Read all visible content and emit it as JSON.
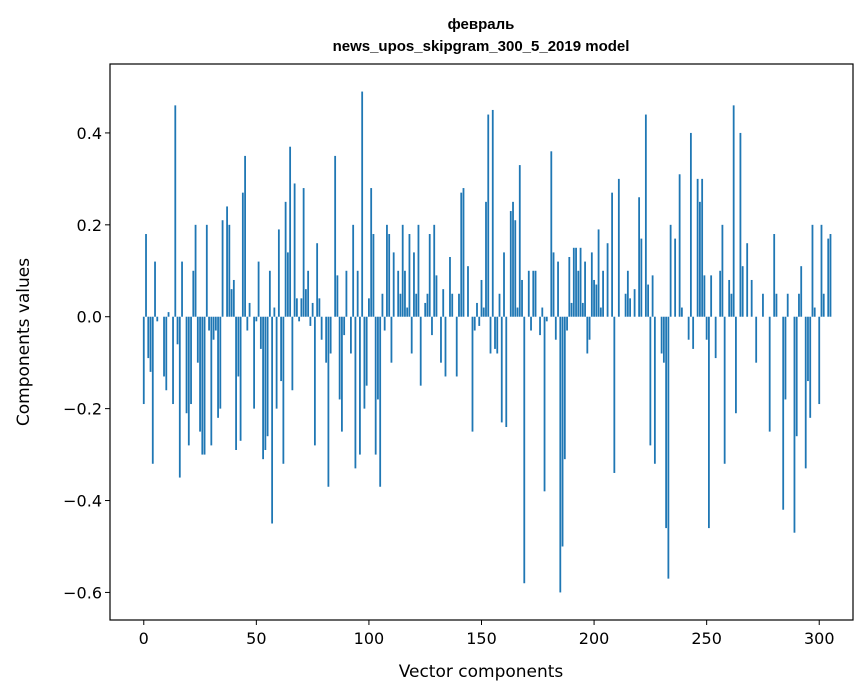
{
  "chart_data": {
    "type": "bar",
    "title": "февраль",
    "subtitle": "news_upos_skipgram_300_5_2019 model",
    "xlabel": "Vector components",
    "ylabel": "Components values",
    "xlim": [
      -15,
      315
    ],
    "ylim": [
      -0.66,
      0.55
    ],
    "xticks": [
      0,
      50,
      100,
      150,
      200,
      250,
      300
    ],
    "xtick_labels": [
      "0",
      "50",
      "100",
      "150",
      "200",
      "250",
      "300"
    ],
    "yticks": [
      -0.6,
      -0.4,
      -0.2,
      0.0,
      0.2,
      0.4
    ],
    "ytick_labels": [
      "−0.6",
      "−0.4",
      "−0.2",
      "0.0",
      "0.2",
      "0.4"
    ],
    "grid": false,
    "bar_color": "#1f77b4",
    "x_start": 0,
    "values": [
      -0.19,
      0.18,
      -0.09,
      -0.12,
      -0.32,
      0.12,
      -0.01,
      0.0,
      0.0,
      -0.13,
      -0.16,
      0.01,
      0.0,
      -0.19,
      0.46,
      -0.06,
      -0.35,
      0.12,
      0.0,
      -0.21,
      -0.28,
      -0.19,
      0.1,
      0.2,
      -0.1,
      -0.25,
      -0.3,
      -0.3,
      0.2,
      -0.03,
      -0.28,
      -0.05,
      -0.03,
      -0.22,
      -0.2,
      0.21,
      0.0,
      0.24,
      0.2,
      0.06,
      0.08,
      -0.29,
      -0.13,
      -0.27,
      0.27,
      0.35,
      -0.03,
      0.03,
      0.0,
      -0.2,
      -0.01,
      0.12,
      -0.07,
      -0.31,
      -0.29,
      -0.26,
      0.1,
      -0.45,
      0.02,
      -0.2,
      0.19,
      -0.14,
      -0.32,
      0.25,
      0.14,
      0.37,
      -0.16,
      0.29,
      0.04,
      -0.01,
      0.04,
      0.28,
      0.06,
      0.1,
      -0.02,
      0.03,
      -0.28,
      0.16,
      0.04,
      -0.05,
      0.0,
      -0.1,
      -0.37,
      -0.08,
      0.0,
      0.35,
      0.09,
      -0.18,
      -0.25,
      -0.04,
      0.1,
      0.0,
      -0.08,
      0.2,
      -0.33,
      0.1,
      -0.3,
      0.49,
      -0.2,
      -0.15,
      0.04,
      0.28,
      0.18,
      -0.3,
      -0.18,
      -0.37,
      0.05,
      -0.03,
      0.2,
      0.18,
      -0.1,
      0.14,
      0.0,
      0.1,
      0.05,
      0.2,
      0.1,
      0.02,
      0.18,
      -0.08,
      0.14,
      0.05,
      0.2,
      -0.15,
      0.0,
      0.03,
      0.05,
      0.18,
      -0.04,
      0.2,
      0.09,
      0.0,
      -0.1,
      0.06,
      -0.13,
      0.0,
      0.13,
      0.05,
      0.0,
      -0.13,
      0.05,
      0.27,
      0.28,
      0.0,
      0.11,
      0.0,
      -0.25,
      -0.03,
      0.03,
      -0.02,
      0.08,
      0.02,
      0.25,
      0.44,
      -0.08,
      0.45,
      -0.07,
      -0.08,
      0.05,
      -0.23,
      0.14,
      -0.24,
      0.0,
      0.23,
      0.25,
      0.21,
      0.02,
      0.33,
      0.08,
      -0.58,
      0.0,
      0.1,
      -0.03,
      0.1,
      0.1,
      0.0,
      -0.04,
      0.02,
      -0.38,
      -0.01,
      0.0,
      0.36,
      0.14,
      -0.05,
      0.12,
      -0.6,
      -0.5,
      -0.31,
      -0.03,
      0.13,
      0.03,
      0.15,
      0.15,
      0.1,
      0.15,
      0.03,
      0.12,
      -0.08,
      -0.05,
      0.14,
      0.08,
      0.07,
      0.19,
      0.02,
      0.1,
      0.0,
      0.16,
      0.0,
      0.27,
      -0.34,
      0.0,
      0.3,
      0.0,
      0.0,
      0.05,
      0.1,
      0.04,
      0.0,
      0.06,
      0.0,
      0.26,
      0.17,
      0.0,
      0.44,
      0.07,
      -0.28,
      0.09,
      -0.32,
      0.0,
      0.0,
      -0.08,
      -0.1,
      -0.46,
      -0.57,
      0.2,
      0.0,
      0.17,
      0.0,
      0.31,
      0.02,
      0.0,
      0.0,
      -0.05,
      0.4,
      -0.07,
      0.0,
      0.3,
      0.25,
      0.3,
      0.09,
      -0.05,
      -0.46,
      0.09,
      0.0,
      -0.09,
      0.0,
      0.1,
      0.2,
      -0.32,
      0.0,
      0.08,
      0.05,
      0.46,
      -0.21,
      0.0,
      0.4,
      0.11,
      0.0,
      0.16,
      0.0,
      0.08,
      0.0,
      -0.1,
      0.0,
      0.0,
      0.05,
      0.0,
      0.0,
      -0.25,
      0.0,
      0.18,
      0.05,
      0.0,
      0.0,
      -0.42,
      -0.18,
      0.05,
      0.0,
      0.0,
      -0.47,
      -0.26,
      0.05,
      0.11,
      0.0,
      -0.33,
      -0.14,
      -0.22,
      0.2,
      0.02,
      0.0,
      -0.19,
      0.2,
      0.05,
      0.0,
      0.17,
      0.18
    ]
  }
}
